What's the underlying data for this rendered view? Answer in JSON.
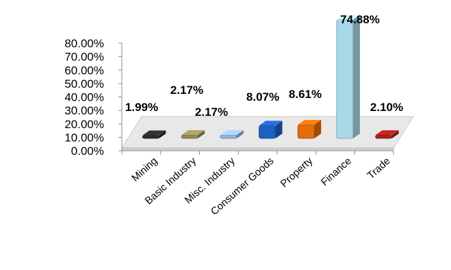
{
  "chart_data": {
    "type": "bar",
    "categories": [
      "Mining",
      "Basic Industry",
      "Misc. Industry",
      "Consumer Goods",
      "Property",
      "Finance",
      "Trade"
    ],
    "values": [
      1.99,
      2.17,
      2.17,
      8.07,
      8.61,
      74.88,
      2.1
    ],
    "data_labels": [
      "1.99%",
      "2.17%",
      "2.17%",
      "8.07%",
      "8.61%",
      "74.88%",
      "2.10%"
    ],
    "bar_colors": [
      "#2b2b2b",
      "#948a54",
      "#95b3d7",
      "#1f5fbf",
      "#e46c0a",
      "#a9d8e8",
      "#a5201a"
    ],
    "y_ticks": [
      "0.00%",
      "10.00%",
      "20.00%",
      "30.00%",
      "40.00%",
      "50.00%",
      "60.00%",
      "70.00%",
      "80.00%"
    ],
    "ylim": [
      0,
      80
    ],
    "title": "",
    "xlabel": "",
    "ylabel": "",
    "grid": false,
    "style": "3d"
  }
}
